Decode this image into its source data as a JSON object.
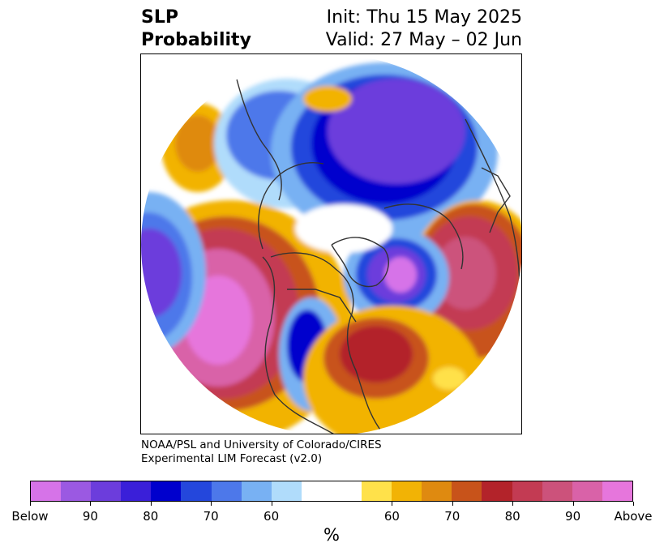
{
  "header": {
    "title_line1": "SLP",
    "title_line2": "Probability",
    "init": "Init: Thu 15 May 2025",
    "valid": "Valid: 27 May – 02 Jun"
  },
  "credit": {
    "line1": "NOAA/PSL and University of Colorado/CIRES",
    "line2": "Experimental LIM Forecast (v2.0)"
  },
  "colorbar": {
    "colors": [
      "#d673e8",
      "#9b59e2",
      "#6c3ddc",
      "#3a1fd9",
      "#0000cd",
      "#2447dc",
      "#4d78ea",
      "#78b1f3",
      "#b0dcfb",
      "#ffffff",
      "#ffe14a",
      "#f2b305",
      "#df8a10",
      "#c8531a",
      "#b3232a",
      "#c33b53",
      "#cc527b",
      "#d962a8",
      "#e676dc"
    ],
    "labels": [
      "Below",
      "90",
      "80",
      "70",
      "60",
      "60",
      "70",
      "80",
      "90",
      "Above"
    ],
    "unit": "%"
  },
  "map": {
    "palette": {
      "below_strong": "#d673e8",
      "blue_dark": "#0000cd",
      "blue_mid": "#4d78ea",
      "blue_light": "#b0dcfb",
      "yellow": "#ffe14a",
      "orange": "#f2b305",
      "red": "#b3232a",
      "pink": "#cc527b",
      "above_strong": "#e676dc",
      "coastline": "#333333"
    }
  }
}
